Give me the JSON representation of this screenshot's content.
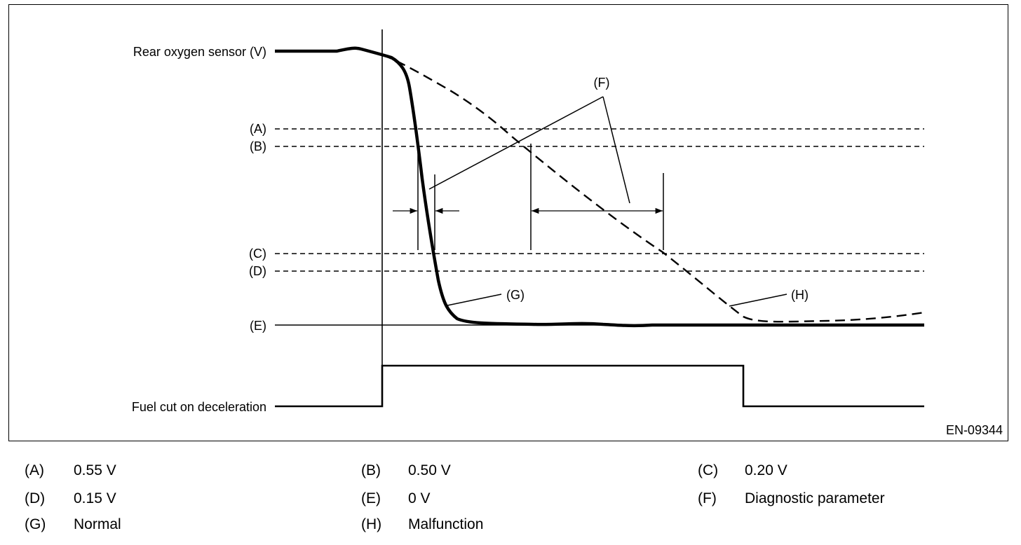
{
  "diagram": {
    "signal_labels": {
      "rear_o2": "Rear oxygen sensor (V)",
      "fuel_cut": "Fuel cut on deceleration"
    },
    "level_labels": {
      "A": "(A)",
      "B": "(B)",
      "C": "(C)",
      "D": "(D)",
      "E": "(E)"
    },
    "callouts": {
      "F": "(F)",
      "G": "(G)",
      "H": "(H)"
    },
    "figure_code": "EN-09344"
  },
  "legend": [
    {
      "key": "(A)",
      "value": "0.55 V"
    },
    {
      "key": "(B)",
      "value": "0.50 V"
    },
    {
      "key": "(C)",
      "value": "0.20 V"
    },
    {
      "key": "(D)",
      "value": "0.15 V"
    },
    {
      "key": "(E)",
      "value": "0 V"
    },
    {
      "key": "(F)",
      "value": "Diagnostic parameter"
    },
    {
      "key": "(G)",
      "value": "Normal"
    },
    {
      "key": "(H)",
      "value": "Malfunction"
    }
  ]
}
